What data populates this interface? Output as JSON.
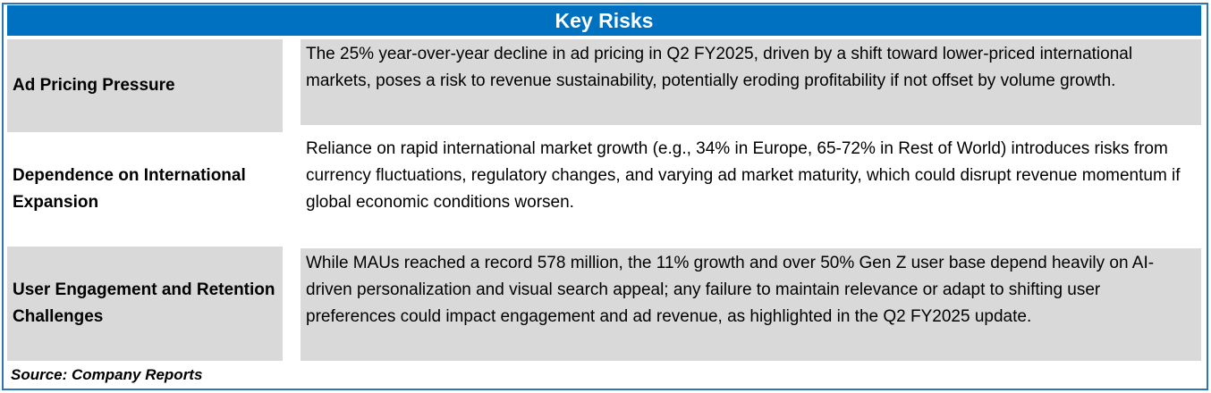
{
  "table": {
    "title": "Key Risks",
    "rows": [
      {
        "risk": "Ad Pricing Pressure",
        "description": " The 25% year-over-year decline in ad pricing in Q2 FY2025, driven by a shift toward lower-priced international markets, poses a risk to revenue sustainability, potentially eroding profitability if not offset by volume growth."
      },
      {
        "risk": "Dependence on International Expansion",
        "description": " Reliance on rapid international market growth (e.g., 34% in Europe, 65-72% in Rest of World) introduces risks from currency fluctuations, regulatory changes, and varying ad market maturity, which could disrupt revenue momentum if global economic conditions worsen."
      },
      {
        "risk": "User Engagement and Retention Challenges",
        "description": " While MAUs reached a record 578 million, the 11% growth and over 50% Gen Z user base depend heavily on AI-driven personalization and visual search appeal; any failure to maintain relevance or adapt to shifting user preferences could impact engagement and ad revenue, as highlighted in the Q2 FY2025 update."
      }
    ],
    "source": "Source: Company Reports"
  }
}
